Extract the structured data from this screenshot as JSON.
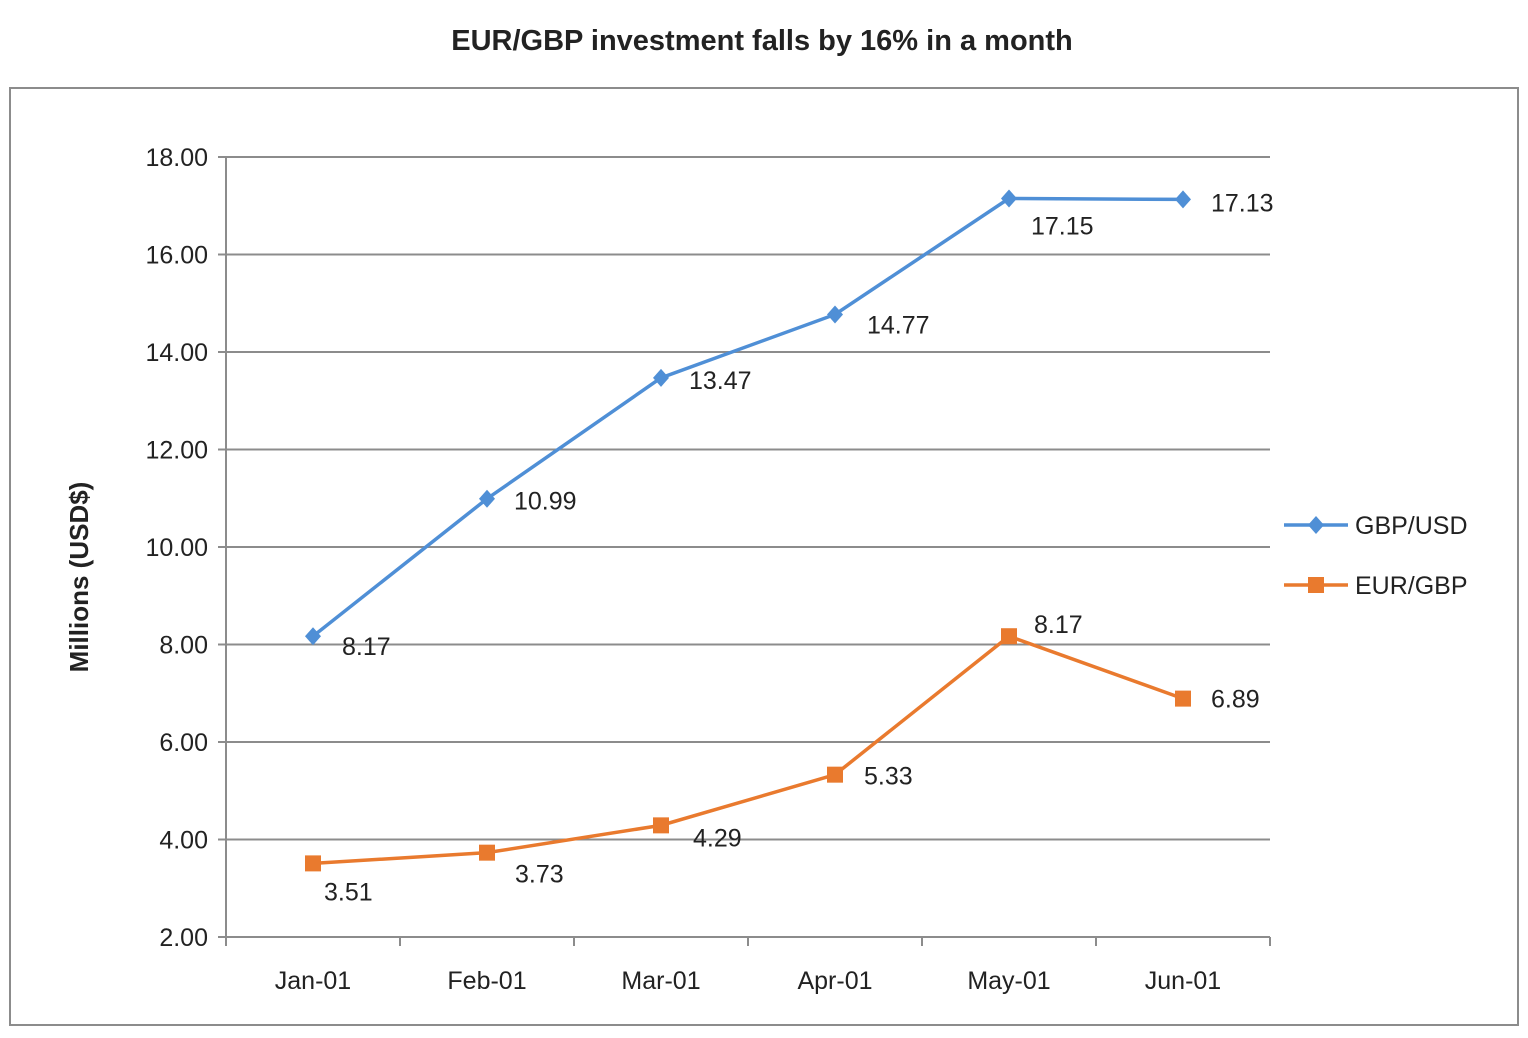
{
  "chart_data": {
    "type": "line",
    "title": "EUR/GBP  investment  falls by 16%  in a month",
    "xlabel": "",
    "ylabel": "Millions (USD$)",
    "ylim": [
      2,
      18
    ],
    "yticks": [
      "2.00",
      "4.00",
      "6.00",
      "8.00",
      "10.00",
      "12.00",
      "14.00",
      "16.00",
      "18.00"
    ],
    "categories": [
      "Jan-01",
      "Feb-01",
      "Mar-01",
      "Apr-01",
      "May-01",
      "Jun-01"
    ],
    "grid": true,
    "legend": "right",
    "series": [
      {
        "name": "GBP/USD",
        "color": "#4f8fd6",
        "marker": "diamond",
        "values": [
          8.17,
          10.99,
          13.47,
          14.77,
          17.15,
          17.13
        ],
        "labels": [
          "8.17",
          "10.99",
          "13.47",
          "14.77",
          "17.15",
          "17.13"
        ]
      },
      {
        "name": "EUR/GBP",
        "color": "#e97a2e",
        "marker": "square",
        "values": [
          3.51,
          3.73,
          4.29,
          5.33,
          8.17,
          6.89
        ],
        "labels": [
          "3.51",
          "3.73",
          "4.29",
          "5.33",
          "8.17",
          "6.89"
        ]
      }
    ]
  }
}
